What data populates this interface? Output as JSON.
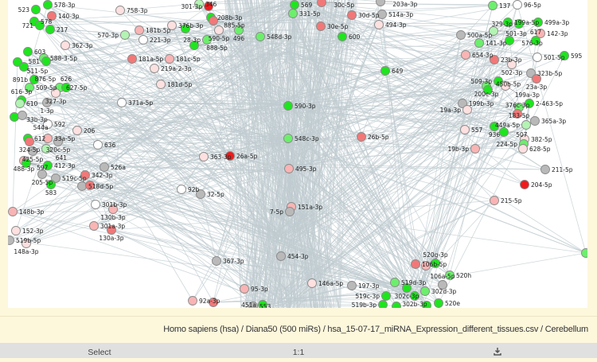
{
  "colors": {
    "green": "#1ee51e",
    "medgreen": "#6cef6c",
    "lightgreen": "#b3f3b3",
    "gray": "#b9b9b9",
    "white": "#ffffff",
    "palepink": "#fde0e0",
    "pink": "#f9b4b4",
    "salmon": "#f27878",
    "red": "#f01a1a",
    "edge": "#bfcbd0",
    "stroke": "#8a8a8a"
  },
  "nodes": [
    {
      "label": "578-3p",
      "level": "green"
    },
    {
      "label": "523",
      "level": "green"
    },
    {
      "label": "140-3p",
      "level": "salmon"
    },
    {
      "label": "578",
      "level": "green"
    },
    {
      "label": "721",
      "level": "green"
    },
    {
      "label": "217",
      "level": "green"
    },
    {
      "label": "362-3p",
      "level": "palepink"
    },
    {
      "label": "603",
      "level": "green"
    },
    {
      "label": "588-3-5p",
      "level": "medgreen"
    },
    {
      "label": "581",
      "level": "green"
    },
    {
      "label": "511-5p",
      "level": "green"
    },
    {
      "label": "876-5p",
      "level": "green"
    },
    {
      "label": "891b",
      "level": "green"
    },
    {
      "label": "509-5p",
      "level": "medgreen"
    },
    {
      "label": "627-5p",
      "level": "medgreen"
    },
    {
      "label": "327-3p",
      "level": "palepink"
    },
    {
      "label": "626",
      "level": "green"
    },
    {
      "label": "616-3p",
      "level": "green"
    },
    {
      "label": "610",
      "level": "lightgreen"
    },
    {
      "label": "1-3p",
      "level": "gray"
    },
    {
      "label": "371a-5p",
      "level": "white"
    },
    {
      "label": "758-3p",
      "level": "palepink"
    },
    {
      "label": "181b-5p",
      "level": "pink"
    },
    {
      "label": "570-3p",
      "level": "lightgreen"
    },
    {
      "label": "221-3p",
      "level": "white"
    },
    {
      "label": "181a-5p",
      "level": "salmon"
    },
    {
      "label": "181c-5p",
      "level": "pink"
    },
    {
      "label": "219a-2-3p",
      "level": "palepink"
    },
    {
      "label": "181d-5p",
      "level": "palepink"
    },
    {
      "label": "376b-3p",
      "level": "palepink"
    },
    {
      "label": "",
      "level": "green"
    },
    {
      "label": "33b-3p",
      "level": "green"
    },
    {
      "label": "544a",
      "level": "gray"
    },
    {
      "label": "592",
      "level": "white"
    },
    {
      "label": "206",
      "level": "palepink"
    },
    {
      "label": "612",
      "level": "green"
    },
    {
      "label": "33a-5p",
      "level": "pink"
    },
    {
      "label": "324-5p",
      "level": "salmon"
    },
    {
      "label": "320c-5p",
      "level": "gray"
    },
    {
      "label": "636",
      "level": "white"
    },
    {
      "label": "641",
      "level": "lightgreen"
    },
    {
      "label": "425-5p",
      "level": "gray"
    },
    {
      "label": "488-3p",
      "level": "pink"
    },
    {
      "label": "597",
      "level": "green"
    },
    {
      "label": "412-3p",
      "level": "green"
    },
    {
      "label": "526a",
      "level": "gray"
    },
    {
      "label": "205-5p",
      "level": "gray"
    },
    {
      "label": "519c-5p",
      "level": "gray"
    },
    {
      "label": "342-3p",
      "level": "salmon"
    },
    {
      "label": "583",
      "level": "green"
    },
    {
      "label": "518d-5p",
      "level": "gray"
    },
    {
      "label": "",
      "level": "salmon"
    },
    {
      "label": "92b",
      "level": "white"
    },
    {
      "label": "32-5p",
      "level": "gray"
    },
    {
      "label": "363-3p",
      "level": "palepink"
    },
    {
      "label": "26a-5p",
      "level": "red"
    },
    {
      "label": "148b-3p",
      "level": "pink"
    },
    {
      "label": "301b-3p",
      "level": "white"
    },
    {
      "label": "130b-3p",
      "level": "pink"
    },
    {
      "label": "152-3p",
      "level": "palepink"
    },
    {
      "label": "301a-3p",
      "level": "pink"
    },
    {
      "label": "130a-3p",
      "level": "salmon"
    },
    {
      "label": "519b-5p",
      "level": "gray"
    },
    {
      "label": "148a-3p",
      "level": "palepink"
    },
    {
      "label": "367-3p",
      "level": "gray"
    },
    {
      "label": "95-3p",
      "level": "pink"
    },
    {
      "label": "92a-3p",
      "level": "pink"
    },
    {
      "label": "25-3p",
      "level": "salmon"
    },
    {
      "label": "553",
      "level": "gray"
    },
    {
      "label": "451a",
      "level": "green"
    },
    {
      "label": "454-3p",
      "level": "gray"
    },
    {
      "label": "151a-3p",
      "level": "pink"
    },
    {
      "label": "7-5p",
      "level": "gray"
    },
    {
      "label": "590-3p",
      "level": "green"
    },
    {
      "label": "548c-3p",
      "level": "medgreen"
    },
    {
      "label": "495-3p",
      "level": "pink"
    },
    {
      "label": "26b-5p",
      "level": "salmon"
    },
    {
      "label": "208b-3p",
      "level": "green"
    },
    {
      "label": "885-5p",
      "level": "salmon"
    },
    {
      "label": "590-5p",
      "level": "palepink"
    },
    {
      "label": "496",
      "level": "medgreen"
    },
    {
      "label": "548d-3p",
      "level": "medgreen"
    },
    {
      "label": "28-3p",
      "level": "medgreen"
    },
    {
      "label": "888-5p",
      "level": "green"
    },
    {
      "label": "346",
      "level": "lightgreen"
    },
    {
      "label": "301-3p",
      "level": "red"
    },
    {
      "label": "569",
      "level": "green"
    },
    {
      "label": "331-5p",
      "level": "medgreen"
    },
    {
      "label": "30c-5p",
      "level": "salmon"
    },
    {
      "label": "30d-5p",
      "level": "salmon"
    },
    {
      "label": "514a-3p",
      "level": "gray"
    },
    {
      "label": "494-3p",
      "level": "palepink"
    },
    {
      "label": "30e-5p",
      "level": "salmon"
    },
    {
      "label": "600",
      "level": "green"
    },
    {
      "label": "649",
      "level": "green"
    },
    {
      "label": "203a-3p",
      "level": "gray"
    },
    {
      "label": "137",
      "level": "medgreen"
    },
    {
      "label": "96-5p",
      "level": "white"
    },
    {
      "label": "199a-5p",
      "level": "green"
    },
    {
      "label": "329-3p",
      "level": "green"
    },
    {
      "label": "499a-3p",
      "level": "green"
    },
    {
      "label": "500a-5p",
      "level": "gray"
    },
    {
      "label": "501-3p",
      "level": "lightgreen"
    },
    {
      "label": "141-3p",
      "level": "medgreen"
    },
    {
      "label": "576-3p",
      "level": "green"
    },
    {
      "label": "142-3p",
      "level": "pink"
    },
    {
      "label": "617",
      "level": "green"
    },
    {
      "label": "654-3p",
      "level": "pink"
    },
    {
      "label": "23b-3p",
      "level": "salmon"
    },
    {
      "label": "502-3p",
      "level": "palepink"
    },
    {
      "label": "501-5p",
      "level": "white"
    },
    {
      "label": "595",
      "level": "green"
    },
    {
      "label": "323b-5p",
      "level": "gray"
    },
    {
      "label": "23a-3p",
      "level": "salmon"
    },
    {
      "label": "509-3p",
      "level": "green"
    },
    {
      "label": "200c-3p",
      "level": "medgreen"
    },
    {
      "label": "199a-3p",
      "level": "palepink"
    },
    {
      "label": "450b-5p",
      "level": "green"
    },
    {
      "label": "199b-3p",
      "level": "gray"
    },
    {
      "label": "19a-3p",
      "level": "palepink"
    },
    {
      "label": "2-463-5p",
      "level": "green"
    },
    {
      "label": "183-5p",
      "level": "medgreen"
    },
    {
      "label": "376c-3p",
      "level": "salmon"
    },
    {
      "label": "365a-3p",
      "level": "gray"
    },
    {
      "label": "449a-5p",
      "level": "lightgreen"
    },
    {
      "label": "557",
      "level": "palepink"
    },
    {
      "label": "936",
      "level": "green"
    },
    {
      "label": "507",
      "level": "green"
    },
    {
      "label": "382-5p",
      "level": "palepink"
    },
    {
      "label": "224-5p",
      "level": "medgreen"
    },
    {
      "label": "628-5p",
      "level": "palepink"
    },
    {
      "label": "19b-3p",
      "level": "pink"
    },
    {
      "label": "211-5p",
      "level": "gray"
    },
    {
      "label": "204-5p",
      "level": "red"
    },
    {
      "label": "215-5p",
      "level": "pink"
    },
    {
      "label": "",
      "level": "medgreen"
    },
    {
      "label": "106b-5p",
      "level": "salmon"
    },
    {
      "label": "",
      "level": "pink"
    },
    {
      "label": "520g-3p",
      "level": "green"
    },
    {
      "label": "520h",
      "level": "medgreen"
    },
    {
      "label": "146a-5p",
      "level": "palepink"
    },
    {
      "label": "197-3p",
      "level": "gray"
    },
    {
      "label": "519d-3p",
      "level": "medgreen"
    },
    {
      "label": "302c-3p",
      "level": "green"
    },
    {
      "label": "302d-3p",
      "level": "medgreen"
    },
    {
      "label": "106a-5p",
      "level": "gray"
    },
    {
      "label": "519c-3p",
      "level": "green"
    },
    {
      "label": "302b-3p",
      "level": "green"
    },
    {
      "label": "520e",
      "level": "green"
    },
    {
      "label": "519b-3p",
      "level": "green"
    },
    {
      "label": "520c",
      "level": "green"
    },
    {
      "label": "520f",
      "level": "green"
    }
  ],
  "status": {
    "path": "Homo sapiens (hsa) / Diana50 (500 miRs) / hsa_15-07-17_miRNA_Expression_different_tissues.csv / Cerebellum"
  },
  "toolbar": {
    "select_label": "Select",
    "zoom_label": "1:1",
    "download_icon": "download-icon"
  }
}
